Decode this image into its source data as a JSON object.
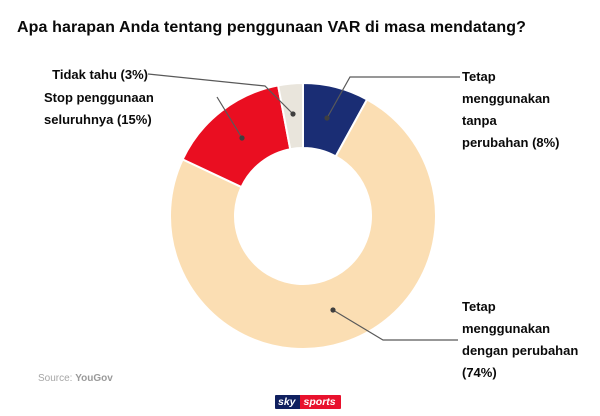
{
  "title": "Apa harapan Anda tentang penggunaan VAR di masa mendatang?",
  "footer": {
    "source_prefix": "Source:",
    "source_name": "YouGov",
    "logo": {
      "sky_text": "sky",
      "sports_text": "sports",
      "sky_bg": "#10205F",
      "sports_bg": "#E8112D"
    }
  },
  "chart_data": {
    "type": "pie",
    "subtype": "donut",
    "title": "Apa harapan Anda tentang penggunaan VAR di masa mendatang?",
    "start_angle_deg": 0,
    "direction": "clockwise",
    "legend_position": "callout-labels",
    "background": "#ffffff",
    "slice_border_color": "#ffffff",
    "segments": [
      {
        "id": "tanpa-perubahan",
        "label": "Tetap menggunakan tanpa perubahan",
        "pct": 8,
        "color": "#1A2D74",
        "callout": "Tetap\nmenggunakan\ntanpa\nperubahan (8%)"
      },
      {
        "id": "dengan-perubahan",
        "label": "Tetap menggunakan dengan perubahan",
        "pct": 74,
        "color": "#FBDEB3",
        "callout": "Tetap\nmenggunakan\ndengan perubahan\n(74%)"
      },
      {
        "id": "stop-penggunaan",
        "label": "Stop penggunaan seluruhnya",
        "pct": 15,
        "color": "#EA0E21",
        "callout": "Stop penggunaan\nseluruhnya (15%)"
      },
      {
        "id": "tidak-tahu",
        "label": "Tidak tahu",
        "pct": 3,
        "color": "#E9E5DC",
        "callout": "Tidak tahu (3%)"
      }
    ]
  }
}
